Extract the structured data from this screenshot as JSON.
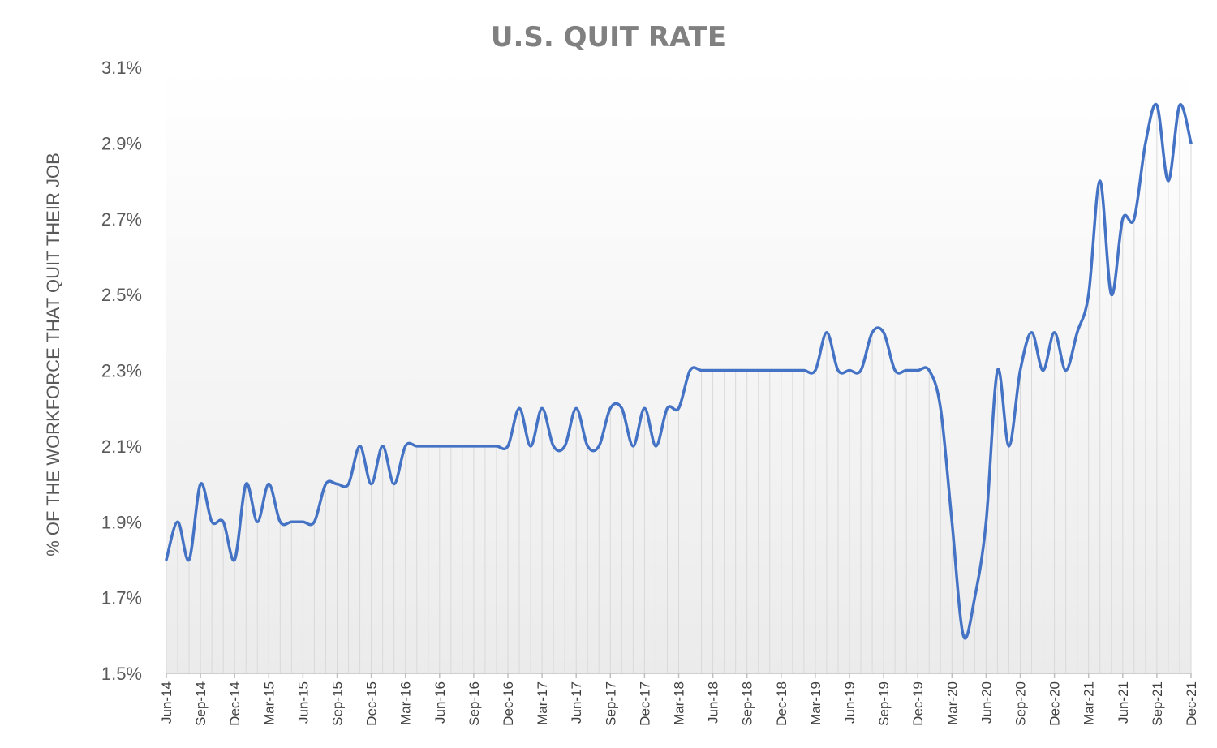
{
  "chart_data": {
    "type": "line",
    "title": "U.S. QUIT RATE",
    "ylabel": "% OF THE WORKFORCE THAT QUIT THEIR JOB",
    "xlabel": "",
    "ylim": [
      1.5,
      3.1
    ],
    "y_ticks": [
      "1.5%",
      "1.7%",
      "1.9%",
      "2.1%",
      "2.3%",
      "2.5%",
      "2.7%",
      "2.9%",
      "3.1%"
    ],
    "x_tick_labels": [
      "Jun-14",
      "Sep-14",
      "Dec-14",
      "Mar-15",
      "Jun-15",
      "Sep-15",
      "Dec-15",
      "Mar-16",
      "Jun-16",
      "Sep-16",
      "Dec-16",
      "Mar-17",
      "Jun-17",
      "Sep-17",
      "Dec-17",
      "Mar-18",
      "Jun-18",
      "Sep-18",
      "Dec-18",
      "Mar-19",
      "Jun-19",
      "Sep-19",
      "Dec-19",
      "Mar-20",
      "Jun-20",
      "Sep-20",
      "Dec-20",
      "Mar-21",
      "Jun-21",
      "Sep-21",
      "Dec-21"
    ],
    "x_start": "Jun-14",
    "x_end": "Dec-21",
    "values": [
      1.8,
      1.9,
      1.8,
      2.0,
      1.9,
      1.9,
      1.8,
      2.0,
      1.9,
      2.0,
      1.9,
      1.9,
      1.9,
      1.9,
      2.0,
      2.0,
      2.0,
      2.1,
      2.0,
      2.1,
      2.0,
      2.1,
      2.1,
      2.1,
      2.1,
      2.1,
      2.1,
      2.1,
      2.1,
      2.1,
      2.1,
      2.2,
      2.1,
      2.2,
      2.1,
      2.1,
      2.2,
      2.1,
      2.1,
      2.2,
      2.2,
      2.1,
      2.2,
      2.1,
      2.2,
      2.2,
      2.3,
      2.3,
      2.3,
      2.3,
      2.3,
      2.3,
      2.3,
      2.3,
      2.3,
      2.3,
      2.3,
      2.3,
      2.4,
      2.3,
      2.3,
      2.3,
      2.4,
      2.4,
      2.3,
      2.3,
      2.3,
      2.3,
      2.2,
      1.9,
      1.6,
      1.7,
      1.9,
      2.3,
      2.1,
      2.3,
      2.4,
      2.3,
      2.4,
      2.3,
      2.4,
      2.5,
      2.8,
      2.5,
      2.7,
      2.7,
      2.9,
      3.0,
      2.8,
      3.0,
      2.9
    ],
    "series_color": "#4472C4",
    "drop_line_color": "#D9D9D9",
    "grid": false,
    "legend": "none"
  }
}
